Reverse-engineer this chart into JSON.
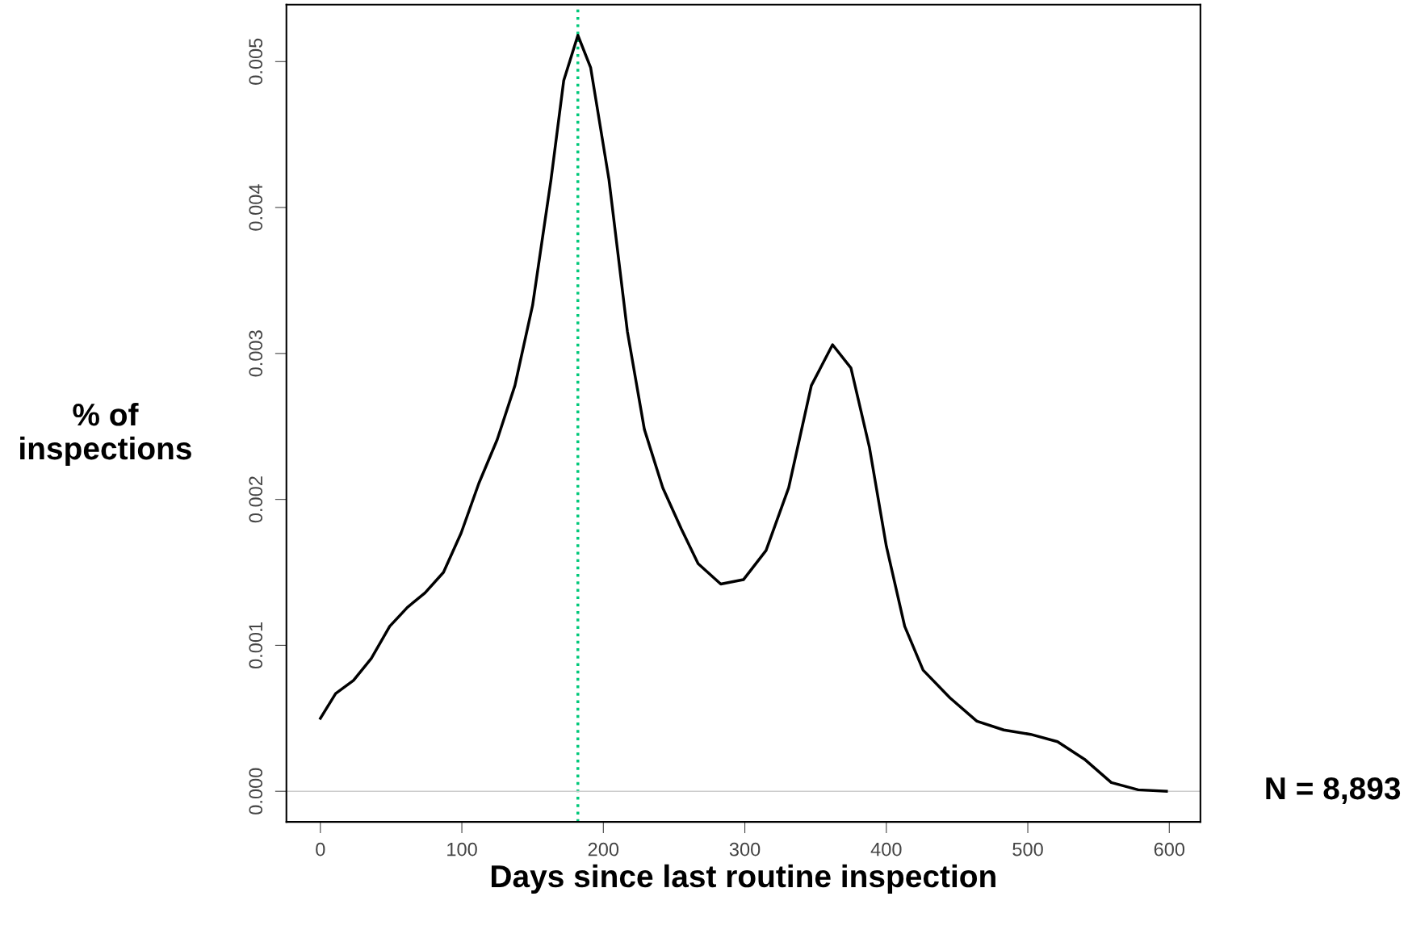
{
  "chart_data": {
    "type": "line",
    "xlabel": "Days since last routine inspection",
    "ylabel": "% of inspections",
    "x": [
      0,
      10.8,
      23.4,
      36,
      49,
      61.5,
      74,
      87,
      99.5,
      112,
      125,
      137.5,
      150,
      163,
      172,
      182,
      191,
      204,
      217,
      229,
      242,
      255,
      267,
      283,
      299,
      315,
      331,
      347,
      362,
      375,
      388,
      400,
      413,
      426,
      445,
      464,
      483,
      502,
      521,
      540,
      559,
      578,
      598
    ],
    "series": [
      {
        "color": "#000000",
        "values": [
          0.0005,
          0.00067,
          0.00076,
          0.00091,
          0.00113,
          0.00126,
          0.00136,
          0.0015,
          0.00177,
          0.00211,
          0.00241,
          0.00278,
          0.00333,
          0.00419,
          0.00487,
          0.00518,
          0.00496,
          0.00419,
          0.00315,
          0.00248,
          0.00208,
          0.0018,
          0.00156,
          0.00142,
          0.00145,
          0.00165,
          0.00208,
          0.00278,
          0.00306,
          0.0029,
          0.00236,
          0.00168,
          0.00113,
          0.00083,
          0.00064,
          0.00048,
          0.00042,
          0.00039,
          0.00034,
          0.00022,
          6e-05,
          1e-05,
          0.0
        ]
      }
    ],
    "xlim": [
      -24,
      622
    ],
    "ylim": [
      -0.00021,
      0.00539
    ],
    "xticks": [
      0,
      100,
      200,
      300,
      400,
      500,
      600
    ],
    "yticks": [
      {
        "value": 0,
        "label": "0.000"
      },
      {
        "value": 0.001,
        "label": "0.001"
      },
      {
        "value": 0.002,
        "label": "0.002"
      },
      {
        "value": 0.003,
        "label": "0.003"
      },
      {
        "value": 0.004,
        "label": "0.004"
      },
      {
        "value": 0.005,
        "label": "0.005"
      }
    ],
    "ref_lines": [
      {
        "axis": "x",
        "value": 182,
        "color": "#00c87a",
        "line_style": "dotted"
      },
      {
        "axis": "y",
        "value": 0,
        "color": "#cccccc",
        "line_style": "solid"
      }
    ],
    "annotations": [
      "N = 8,893"
    ],
    "grid": false,
    "legend": false,
    "marker": "none",
    "line_style": "solid"
  }
}
